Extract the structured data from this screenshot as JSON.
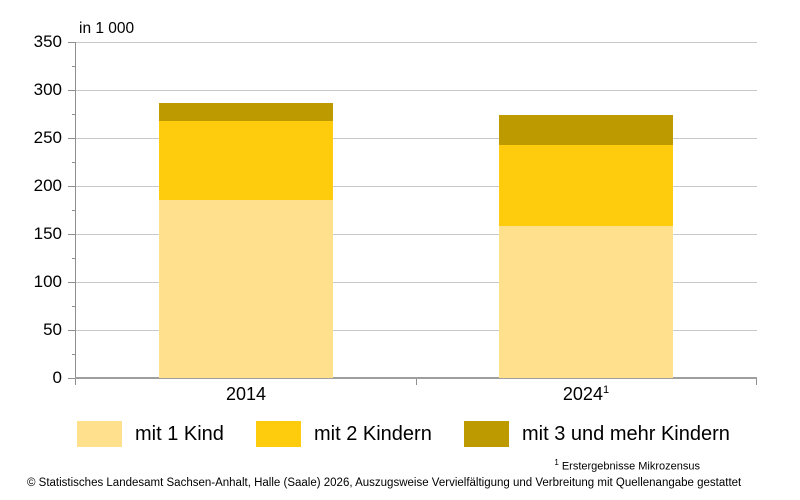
{
  "chart_data": {
    "type": "bar",
    "stacked": true,
    "unit_label": "in 1 000",
    "categories": [
      "2014",
      "2024"
    ],
    "category_footnote_markers": [
      "",
      "1"
    ],
    "series": [
      {
        "name": "mit 1 Kind",
        "color": "#ffe18d",
        "values": [
          185,
          158
        ]
      },
      {
        "name": "mit 2 Kindern",
        "color": "#ffcb0d",
        "values": [
          83,
          85
        ]
      },
      {
        "name": "mit 3 und mehr Kindern",
        "color": "#bc9a00",
        "values": [
          18,
          31
        ]
      }
    ],
    "totals": [
      286,
      274
    ],
    "ylim": [
      0,
      350
    ],
    "ytick_step": 50,
    "yminor_step": 25,
    "yticks": [
      0,
      50,
      100,
      150,
      200,
      250,
      300,
      350
    ],
    "grid": true,
    "legend_position": "bottom",
    "grid_color": "#c9c9c9",
    "axis_color": "#8f8f8f",
    "baseline_color": "#9e9e9e",
    "text_color": "#000000"
  },
  "footnote": {
    "marker": "1",
    "text": "Erstergebnisse Mikrozensus"
  },
  "copyright_line": "© Statistisches Landesamt Sachsen-Anhalt, Halle (Saale) 2026, Auszugsweise Vervielfältigung und Verbreitung mit Quellenangabe gestattet"
}
